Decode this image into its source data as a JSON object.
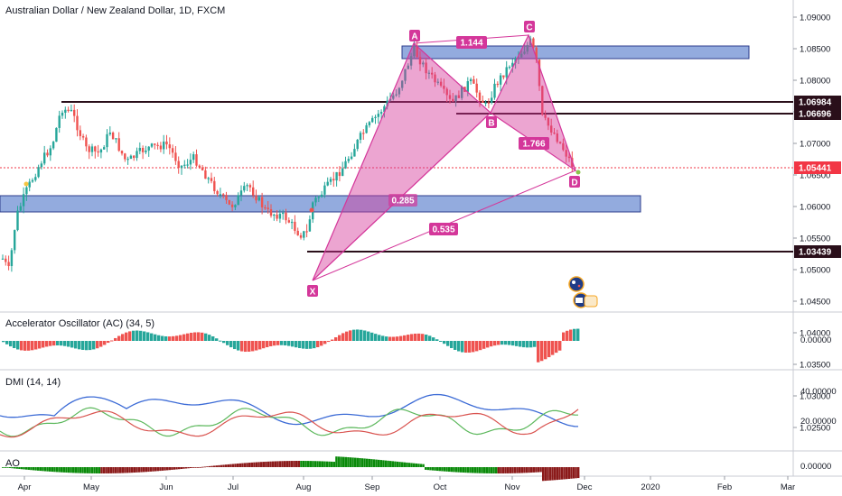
{
  "header": {
    "title": "Australian Dollar / New Zealand Dollar, 1D, FXCM"
  },
  "price_axis": {
    "ticks": [
      "1.09000",
      "1.08500",
      "1.08000",
      "1.07500",
      "1.07000",
      "1.06500",
      "1.06000",
      "1.05500",
      "1.05000",
      "1.04500",
      "1.04000",
      "1.03500",
      "1.03000",
      "1.02500"
    ],
    "tags": [
      {
        "label": "1.06984",
        "color": "#2a0f1a"
      },
      {
        "label": "1.06696",
        "color": "#2a0f1a"
      },
      {
        "label": "1.05441",
        "color": "#f23645"
      },
      {
        "label": "1.03439",
        "color": "#2a0f1a"
      }
    ]
  },
  "time_axis": {
    "labels": [
      "Apr",
      "May",
      "Jun",
      "Jul",
      "Aug",
      "Sep",
      "Oct",
      "Nov",
      "Dec",
      "2020",
      "Feb",
      "Mar"
    ]
  },
  "pattern": {
    "points": [
      "X",
      "A",
      "B",
      "C",
      "D"
    ],
    "ratios": [
      "1.144",
      "1.766",
      "0.285",
      "0.535"
    ],
    "color": "#d4379a"
  },
  "panes": {
    "ac": {
      "title": "Accelerator Oscillator (AC) (34, 5)",
      "ticks": [
        "0.00000"
      ]
    },
    "dmi": {
      "title": "DMI (14, 14)",
      "ticks": [
        "40.00000",
        "20.00000"
      ]
    },
    "ao": {
      "title": "AO",
      "ticks": [
        "0.00000"
      ]
    }
  },
  "colors": {
    "up": "#26a69a",
    "down": "#ef5350",
    "zone": "#6f8fd3",
    "zone_border": "#2c3e8c"
  },
  "icons": [
    "australia-flag-icon",
    "event-calendar-icon"
  ]
}
